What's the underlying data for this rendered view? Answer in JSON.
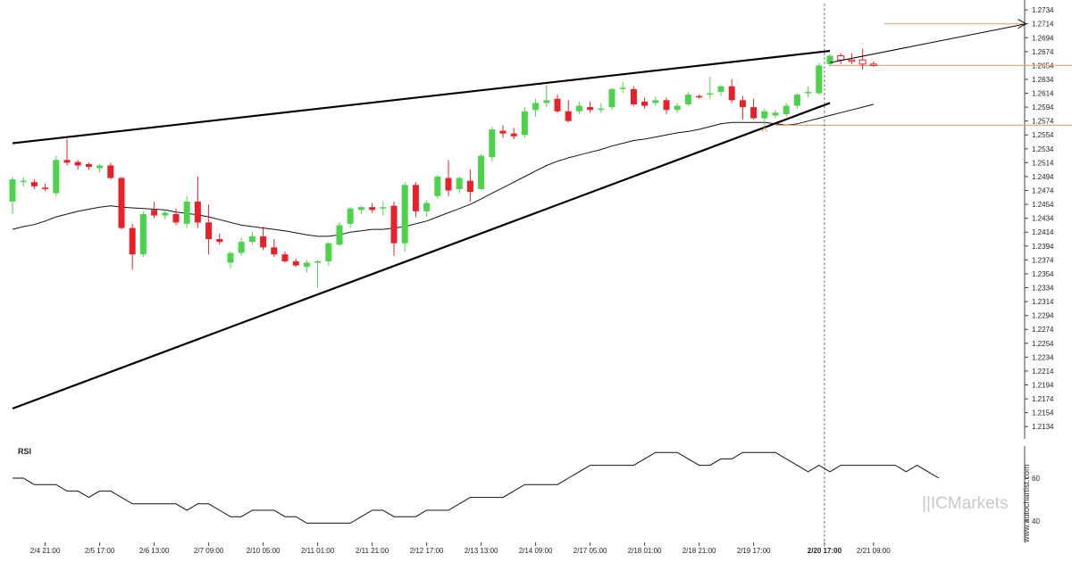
{
  "chart_data": [
    {
      "type": "candlestick",
      "title": "",
      "x_tick_labels": [
        "2/4 21:00",
        "2/5 17:00",
        "2/6 13:00",
        "2/7 09:00",
        "2/10 05:00",
        "2/11 01:00",
        "2/11 21:00",
        "2/12 17:00",
        "2/13 13:00",
        "2/14 09:00",
        "2/17 05:00",
        "2/18 01:00",
        "2/18 21:00",
        "2/19 17:00",
        "2/20 17:00",
        "2/21 09:00"
      ],
      "highlighted_x_label": "2/20 17:00",
      "y_tick_labels": [
        "1.2734",
        "1.2714",
        "1.2694",
        "1.2674",
        "1.2654",
        "1.2634",
        "1.2614",
        "1.2594",
        "1.2574",
        "1.2554",
        "1.2534",
        "1.2514",
        "1.2494",
        "1.2474",
        "1.2454",
        "1.2434",
        "1.2414",
        "1.2394",
        "1.2374",
        "1.2354",
        "1.2334",
        "1.2314",
        "1.2294",
        "1.2274",
        "1.2254",
        "1.2234",
        "1.2214",
        "1.2194",
        "1.2174",
        "1.2154",
        "1.2134"
      ],
      "ylim": [
        1.2124,
        1.2738
      ],
      "grid": false,
      "candles": [
        {
          "o": 1.2458,
          "h": 1.2494,
          "l": 1.244,
          "c": 1.249
        },
        {
          "o": 1.2486,
          "h": 1.2493,
          "l": 1.248,
          "c": 1.2488
        },
        {
          "o": 1.2486,
          "h": 1.249,
          "l": 1.2476,
          "c": 1.248
        },
        {
          "o": 1.2478,
          "h": 1.2484,
          "l": 1.2473,
          "c": 1.2476
        },
        {
          "o": 1.247,
          "h": 1.2524,
          "l": 1.2466,
          "c": 1.2518
        },
        {
          "o": 1.2518,
          "h": 1.2548,
          "l": 1.251,
          "c": 1.2514
        },
        {
          "o": 1.2515,
          "h": 1.2518,
          "l": 1.2504,
          "c": 1.251
        },
        {
          "o": 1.2512,
          "h": 1.2514,
          "l": 1.2504,
          "c": 1.2508
        },
        {
          "o": 1.2506,
          "h": 1.2512,
          "l": 1.25,
          "c": 1.251
        },
        {
          "o": 1.251,
          "h": 1.2514,
          "l": 1.249,
          "c": 1.2492
        },
        {
          "o": 1.2492,
          "h": 1.2494,
          "l": 1.2418,
          "c": 1.242
        },
        {
          "o": 1.242,
          "h": 1.2426,
          "l": 1.236,
          "c": 1.2382
        },
        {
          "o": 1.2382,
          "h": 1.2444,
          "l": 1.2378,
          "c": 1.244
        },
        {
          "o": 1.2446,
          "h": 1.2458,
          "l": 1.2434,
          "c": 1.2438
        },
        {
          "o": 1.2438,
          "h": 1.2446,
          "l": 1.2432,
          "c": 1.2442
        },
        {
          "o": 1.244,
          "h": 1.2448,
          "l": 1.2424,
          "c": 1.2428
        },
        {
          "o": 1.2426,
          "h": 1.2466,
          "l": 1.242,
          "c": 1.2458
        },
        {
          "o": 1.2458,
          "h": 1.2494,
          "l": 1.242,
          "c": 1.2428
        },
        {
          "o": 1.2428,
          "h": 1.2454,
          "l": 1.2382,
          "c": 1.2404
        },
        {
          "o": 1.2404,
          "h": 1.2412,
          "l": 1.2396,
          "c": 1.24
        },
        {
          "o": 1.237,
          "h": 1.2386,
          "l": 1.2362,
          "c": 1.2384
        },
        {
          "o": 1.2384,
          "h": 1.2406,
          "l": 1.238,
          "c": 1.24
        },
        {
          "o": 1.24,
          "h": 1.2414,
          "l": 1.2396,
          "c": 1.2408
        },
        {
          "o": 1.2408,
          "h": 1.2422,
          "l": 1.2388,
          "c": 1.2392
        },
        {
          "o": 1.2392,
          "h": 1.2404,
          "l": 1.2378,
          "c": 1.2382
        },
        {
          "o": 1.2382,
          "h": 1.2386,
          "l": 1.237,
          "c": 1.2372
        },
        {
          "o": 1.2372,
          "h": 1.2376,
          "l": 1.2364,
          "c": 1.2366
        },
        {
          "o": 1.2364,
          "h": 1.2374,
          "l": 1.2356,
          "c": 1.237
        },
        {
          "o": 1.237,
          "h": 1.2374,
          "l": 1.2334,
          "c": 1.2372
        },
        {
          "o": 1.2372,
          "h": 1.24,
          "l": 1.2366,
          "c": 1.2398
        },
        {
          "o": 1.2396,
          "h": 1.2428,
          "l": 1.2394,
          "c": 1.2424
        },
        {
          "o": 1.2426,
          "h": 1.245,
          "l": 1.242,
          "c": 1.2448
        },
        {
          "o": 1.2446,
          "h": 1.2452,
          "l": 1.244,
          "c": 1.245
        },
        {
          "o": 1.245,
          "h": 1.2456,
          "l": 1.2442,
          "c": 1.2446
        },
        {
          "o": 1.245,
          "h": 1.2458,
          "l": 1.2438,
          "c": 1.245
        },
        {
          "o": 1.2452,
          "h": 1.2458,
          "l": 1.238,
          "c": 1.2398
        },
        {
          "o": 1.2398,
          "h": 1.2486,
          "l": 1.2386,
          "c": 1.2482
        },
        {
          "o": 1.2482,
          "h": 1.2486,
          "l": 1.2436,
          "c": 1.2444
        },
        {
          "o": 1.2444,
          "h": 1.246,
          "l": 1.2436,
          "c": 1.2456
        },
        {
          "o": 1.2466,
          "h": 1.2496,
          "l": 1.2462,
          "c": 1.2494
        },
        {
          "o": 1.2492,
          "h": 1.2518,
          "l": 1.2466,
          "c": 1.2474
        },
        {
          "o": 1.2476,
          "h": 1.2494,
          "l": 1.247,
          "c": 1.2492
        },
        {
          "o": 1.2488,
          "h": 1.2504,
          "l": 1.2458,
          "c": 1.2472
        },
        {
          "o": 1.2476,
          "h": 1.2526,
          "l": 1.2474,
          "c": 1.2524
        },
        {
          "o": 1.2522,
          "h": 1.2566,
          "l": 1.2516,
          "c": 1.2562
        },
        {
          "o": 1.256,
          "h": 1.2568,
          "l": 1.255,
          "c": 1.2556
        },
        {
          "o": 1.2556,
          "h": 1.2564,
          "l": 1.2548,
          "c": 1.2552
        },
        {
          "o": 1.2554,
          "h": 1.2594,
          "l": 1.255,
          "c": 1.2588
        },
        {
          "o": 1.259,
          "h": 1.2606,
          "l": 1.258,
          "c": 1.26
        },
        {
          "o": 1.26,
          "h": 1.2626,
          "l": 1.2594,
          "c": 1.2604
        },
        {
          "o": 1.2606,
          "h": 1.2612,
          "l": 1.2586,
          "c": 1.2588
        },
        {
          "o": 1.2588,
          "h": 1.2604,
          "l": 1.2572,
          "c": 1.2574
        },
        {
          "o": 1.2588,
          "h": 1.2602,
          "l": 1.2584,
          "c": 1.2596
        },
        {
          "o": 1.2594,
          "h": 1.2602,
          "l": 1.2586,
          "c": 1.259
        },
        {
          "o": 1.259,
          "h": 1.26,
          "l": 1.2586,
          "c": 1.2592
        },
        {
          "o": 1.2594,
          "h": 1.2622,
          "l": 1.259,
          "c": 1.262
        },
        {
          "o": 1.262,
          "h": 1.263,
          "l": 1.2614,
          "c": 1.2622
        },
        {
          "o": 1.262,
          "h": 1.2624,
          "l": 1.2596,
          "c": 1.2598
        },
        {
          "o": 1.2602,
          "h": 1.2608,
          "l": 1.2592,
          "c": 1.2596
        },
        {
          "o": 1.26,
          "h": 1.261,
          "l": 1.2596,
          "c": 1.2604
        },
        {
          "o": 1.2604,
          "h": 1.2608,
          "l": 1.2584,
          "c": 1.259
        },
        {
          "o": 1.259,
          "h": 1.26,
          "l": 1.2586,
          "c": 1.2596
        },
        {
          "o": 1.2598,
          "h": 1.2616,
          "l": 1.2596,
          "c": 1.2612
        },
        {
          "o": 1.261,
          "h": 1.2612,
          "l": 1.2606,
          "c": 1.2608
        },
        {
          "o": 1.2612,
          "h": 1.2638,
          "l": 1.2606,
          "c": 1.2614
        },
        {
          "o": 1.2616,
          "h": 1.2626,
          "l": 1.261,
          "c": 1.2624
        },
        {
          "o": 1.2624,
          "h": 1.2634,
          "l": 1.26,
          "c": 1.2604
        },
        {
          "o": 1.2604,
          "h": 1.261,
          "l": 1.2576,
          "c": 1.2594
        },
        {
          "o": 1.2594,
          "h": 1.2606,
          "l": 1.2576,
          "c": 1.2578
        },
        {
          "o": 1.2578,
          "h": 1.2592,
          "l": 1.2568,
          "c": 1.2588
        },
        {
          "o": 1.2582,
          "h": 1.259,
          "l": 1.2578,
          "c": 1.2586
        },
        {
          "o": 1.2584,
          "h": 1.26,
          "l": 1.258,
          "c": 1.2596
        },
        {
          "o": 1.2596,
          "h": 1.2614,
          "l": 1.2592,
          "c": 1.2612
        },
        {
          "o": 1.2614,
          "h": 1.2624,
          "l": 1.2608,
          "c": 1.2616
        },
        {
          "o": 1.2614,
          "h": 1.2658,
          "l": 1.2612,
          "c": 1.2654
        },
        {
          "o": 1.2656,
          "h": 1.267,
          "l": 1.2652,
          "c": 1.2668
        },
        {
          "o": 1.2668,
          "h": 1.2672,
          "l": 1.2656,
          "c": 1.2662
        },
        {
          "o": 1.266,
          "h": 1.2672,
          "l": 1.2656,
          "c": 1.2662
        },
        {
          "o": 1.2662,
          "h": 1.2678,
          "l": 1.2648,
          "c": 1.2656
        },
        {
          "o": 1.2656,
          "h": 1.266,
          "l": 1.2652,
          "c": 1.2654
        }
      ],
      "projected_from_index": 75,
      "moving_average": [
        1.2418,
        1.2422,
        1.2425,
        1.243,
        1.2436,
        1.244,
        1.2444,
        1.2447,
        1.245,
        1.2452,
        1.245,
        1.2449,
        1.2448,
        1.2447,
        1.2446,
        1.2443,
        1.2441,
        1.2439,
        1.2436,
        1.2432,
        1.2428,
        1.2424,
        1.2422,
        1.242,
        1.2418,
        1.2416,
        1.2413,
        1.241,
        1.2408,
        1.2408,
        1.241,
        1.2414,
        1.2416,
        1.2418,
        1.2418,
        1.242,
        1.2422,
        1.2426,
        1.243,
        1.2436,
        1.2442,
        1.2448,
        1.2454,
        1.2462,
        1.247,
        1.2478,
        1.2486,
        1.2494,
        1.2502,
        1.251,
        1.2516,
        1.2521,
        1.2525,
        1.2529,
        1.2533,
        1.2538,
        1.2542,
        1.2546,
        1.2548,
        1.2551,
        1.2554,
        1.2557,
        1.2559,
        1.2562,
        1.2566,
        1.257,
        1.2572,
        1.2572,
        1.2572,
        1.2572,
        1.257,
        1.2568,
        1.257,
        1.2574,
        1.2578,
        1.2582,
        1.2586,
        1.259,
        1.2594,
        1.2598
      ],
      "trendlines": [
        {
          "name": "upper",
          "from": [
            0,
            1.2542
          ],
          "to": [
            75,
            1.2675
          ]
        },
        {
          "name": "lower",
          "from": [
            0,
            1.216
          ],
          "to": [
            75,
            1.26
          ]
        },
        {
          "name": "projection",
          "from": [
            75,
            1.2658
          ],
          "to": [
            93,
            1.2714
          ]
        }
      ],
      "horizontal_levels": [
        {
          "value": 1.2714,
          "from_index": 80,
          "to_index": 93,
          "color": "#e8a878"
        },
        {
          "value": 1.2654,
          "from_index": 75,
          "to_index": 98,
          "color": "#e8a878"
        },
        {
          "value": 1.2568,
          "from_index": 70,
          "to_index": 98,
          "color": "#e8a878"
        }
      ],
      "breakout_marker": {
        "index": 69,
        "value": 1.2564,
        "color": "#e8a878"
      },
      "vertical_marker_index": 74.5,
      "colors": {
        "up": "#4cd34c",
        "down": "#e8202a",
        "hollow": "#e8202a",
        "trend": "#000000",
        "level": "#e8a878"
      }
    },
    {
      "type": "line",
      "label": "RSI",
      "y_tick_labels": [
        "60",
        "40"
      ],
      "ylim": [
        30,
        75
      ],
      "values": [
        60,
        60,
        57,
        57,
        57,
        54,
        54,
        51,
        54,
        54,
        51,
        48,
        48,
        48,
        48,
        48,
        45,
        48,
        48,
        45,
        42,
        42,
        45,
        45,
        45,
        42,
        42,
        39,
        39,
        39,
        39,
        39,
        42,
        45,
        45,
        42,
        42,
        42,
        45,
        45,
        45,
        48,
        51,
        51,
        51,
        51,
        54,
        57,
        57,
        57,
        57,
        60,
        63,
        66,
        66,
        66,
        66,
        66,
        69,
        72,
        72,
        72,
        69,
        66,
        66,
        69,
        69,
        72,
        72,
        72,
        72,
        69,
        66,
        63,
        66,
        63,
        66,
        66,
        66,
        66,
        66,
        66,
        63,
        66,
        63,
        60
      ]
    }
  ],
  "watermark": "www.autochartist.com",
  "brand": "ICMarkets"
}
